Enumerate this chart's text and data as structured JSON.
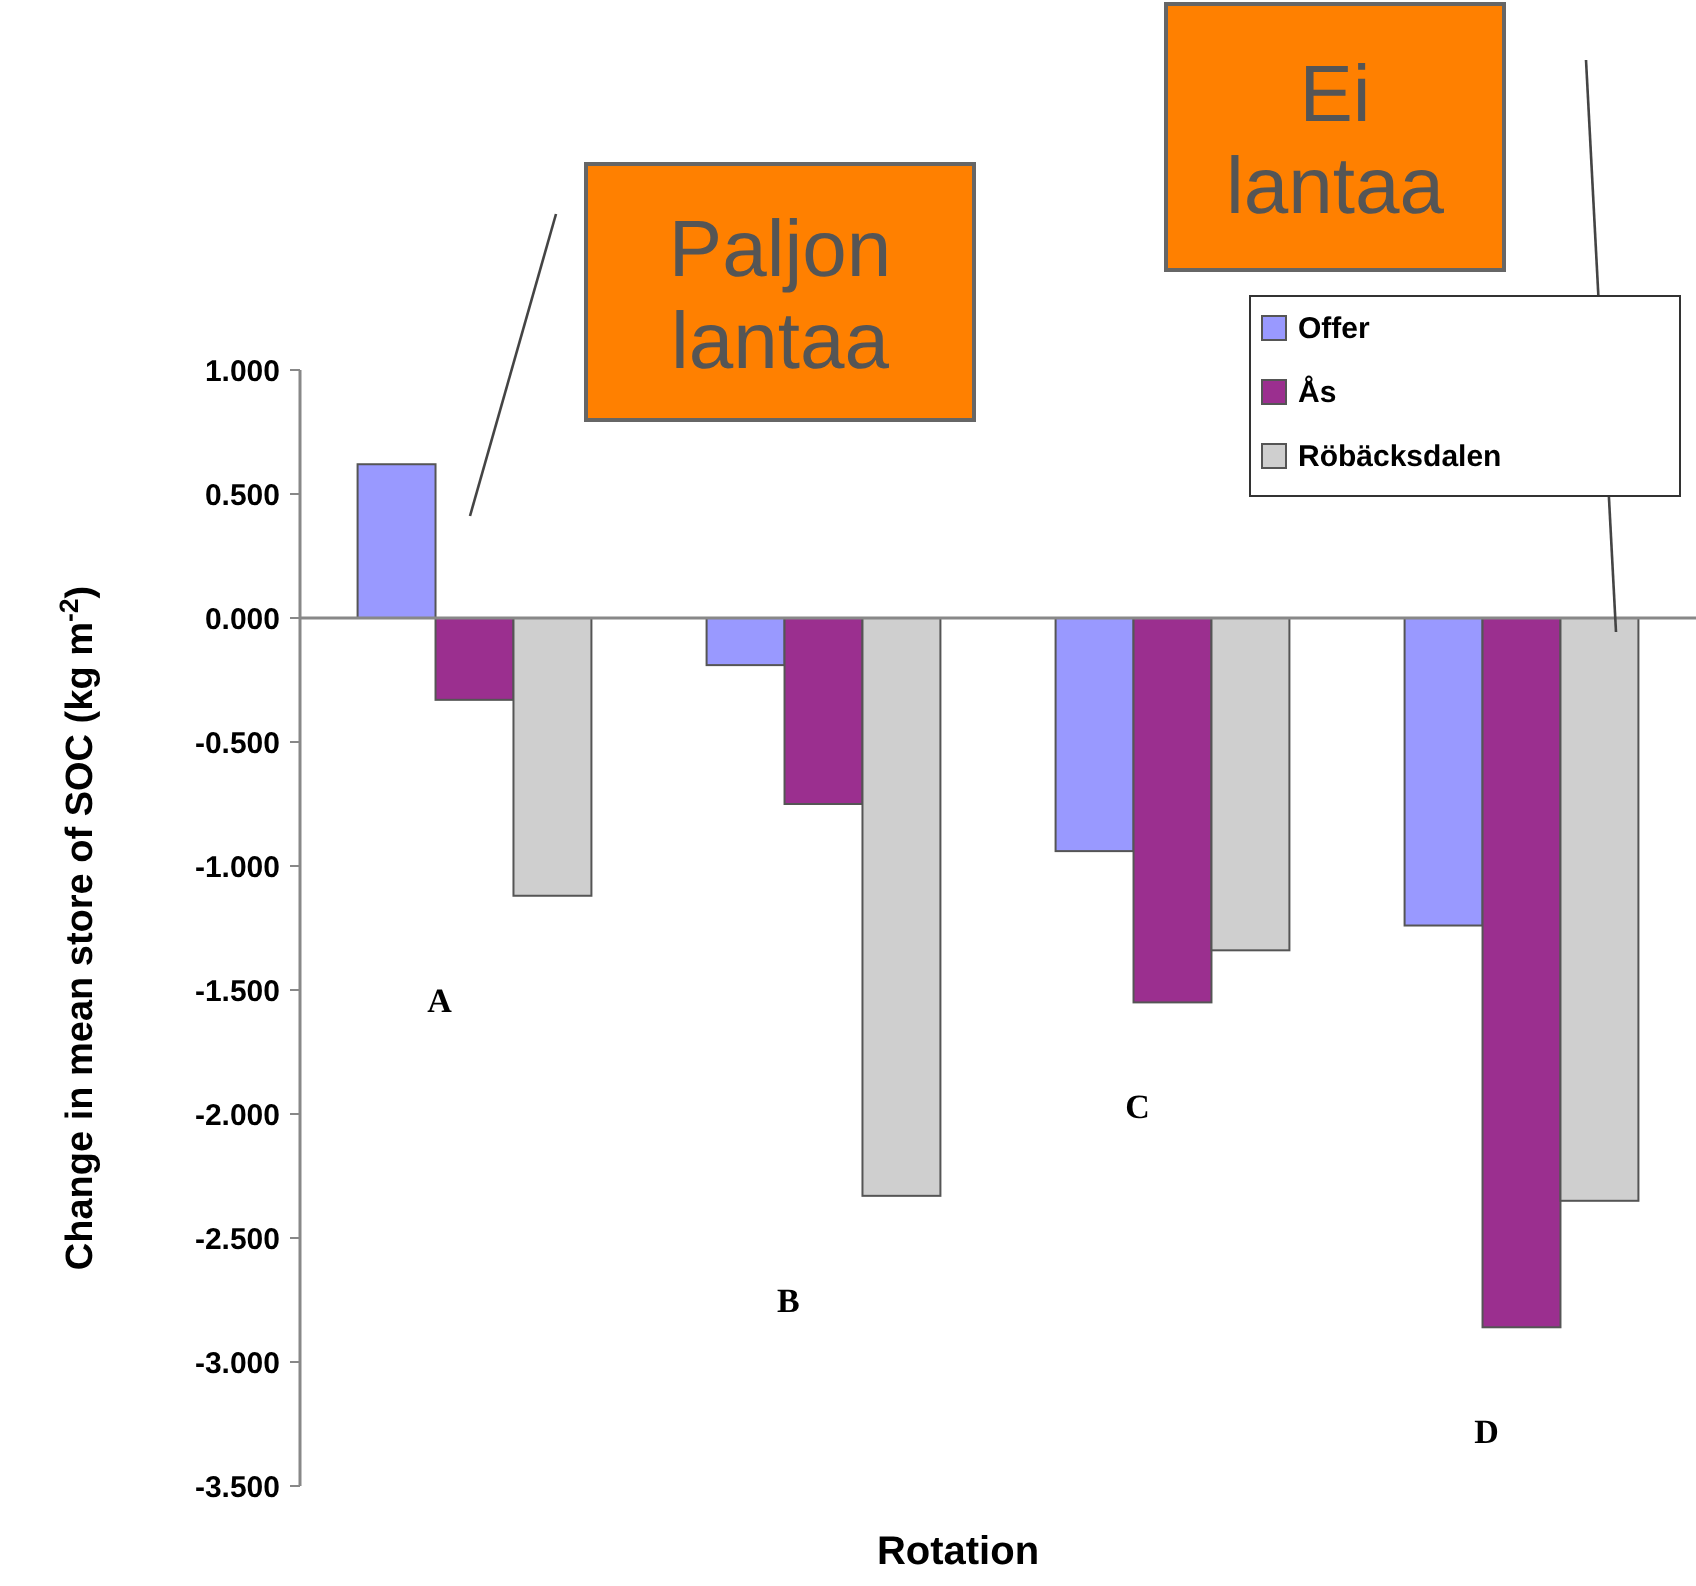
{
  "chart_data": {
    "type": "bar",
    "xlabel": "Rotation",
    "ylabel": "Change in mean store of SOC (kg m$^{-2}$)",
    "categories": [
      "A",
      "B",
      "C",
      "D"
    ],
    "series": [
      {
        "name": "Offer",
        "color": "#9999ff",
        "values": [
          0.62,
          -0.19,
          -0.94,
          -1.24
        ]
      },
      {
        "name": "Ås",
        "color": "#9b2f8f",
        "values": [
          -0.33,
          -0.75,
          -1.55,
          -2.86
        ]
      },
      {
        "name": "Röbäcksdalen",
        "color": "#cfcfcf",
        "values": [
          -1.12,
          -2.33,
          -1.34,
          -2.35
        ]
      }
    ],
    "ylim": [
      -3.5,
      1
    ],
    "yticks": [
      {
        "value": 1,
        "label": "1.000"
      },
      {
        "value": 0.5,
        "label": "0.500"
      },
      {
        "value": 0,
        "label": "0.000"
      },
      {
        "value": -0.5,
        "label": "-0.500"
      },
      {
        "value": -1,
        "label": "-1.000"
      },
      {
        "value": -1.5,
        "label": "-1.500"
      },
      {
        "value": -2,
        "label": "-2.000"
      },
      {
        "value": -2.5,
        "label": "-2.500"
      },
      {
        "value": -3,
        "label": "-3.000"
      },
      {
        "value": -3.5,
        "label": "-3.500"
      }
    ],
    "legend": "top right",
    "annotations": [
      "Paljon lantaa",
      "Ei lantaa"
    ]
  }
}
